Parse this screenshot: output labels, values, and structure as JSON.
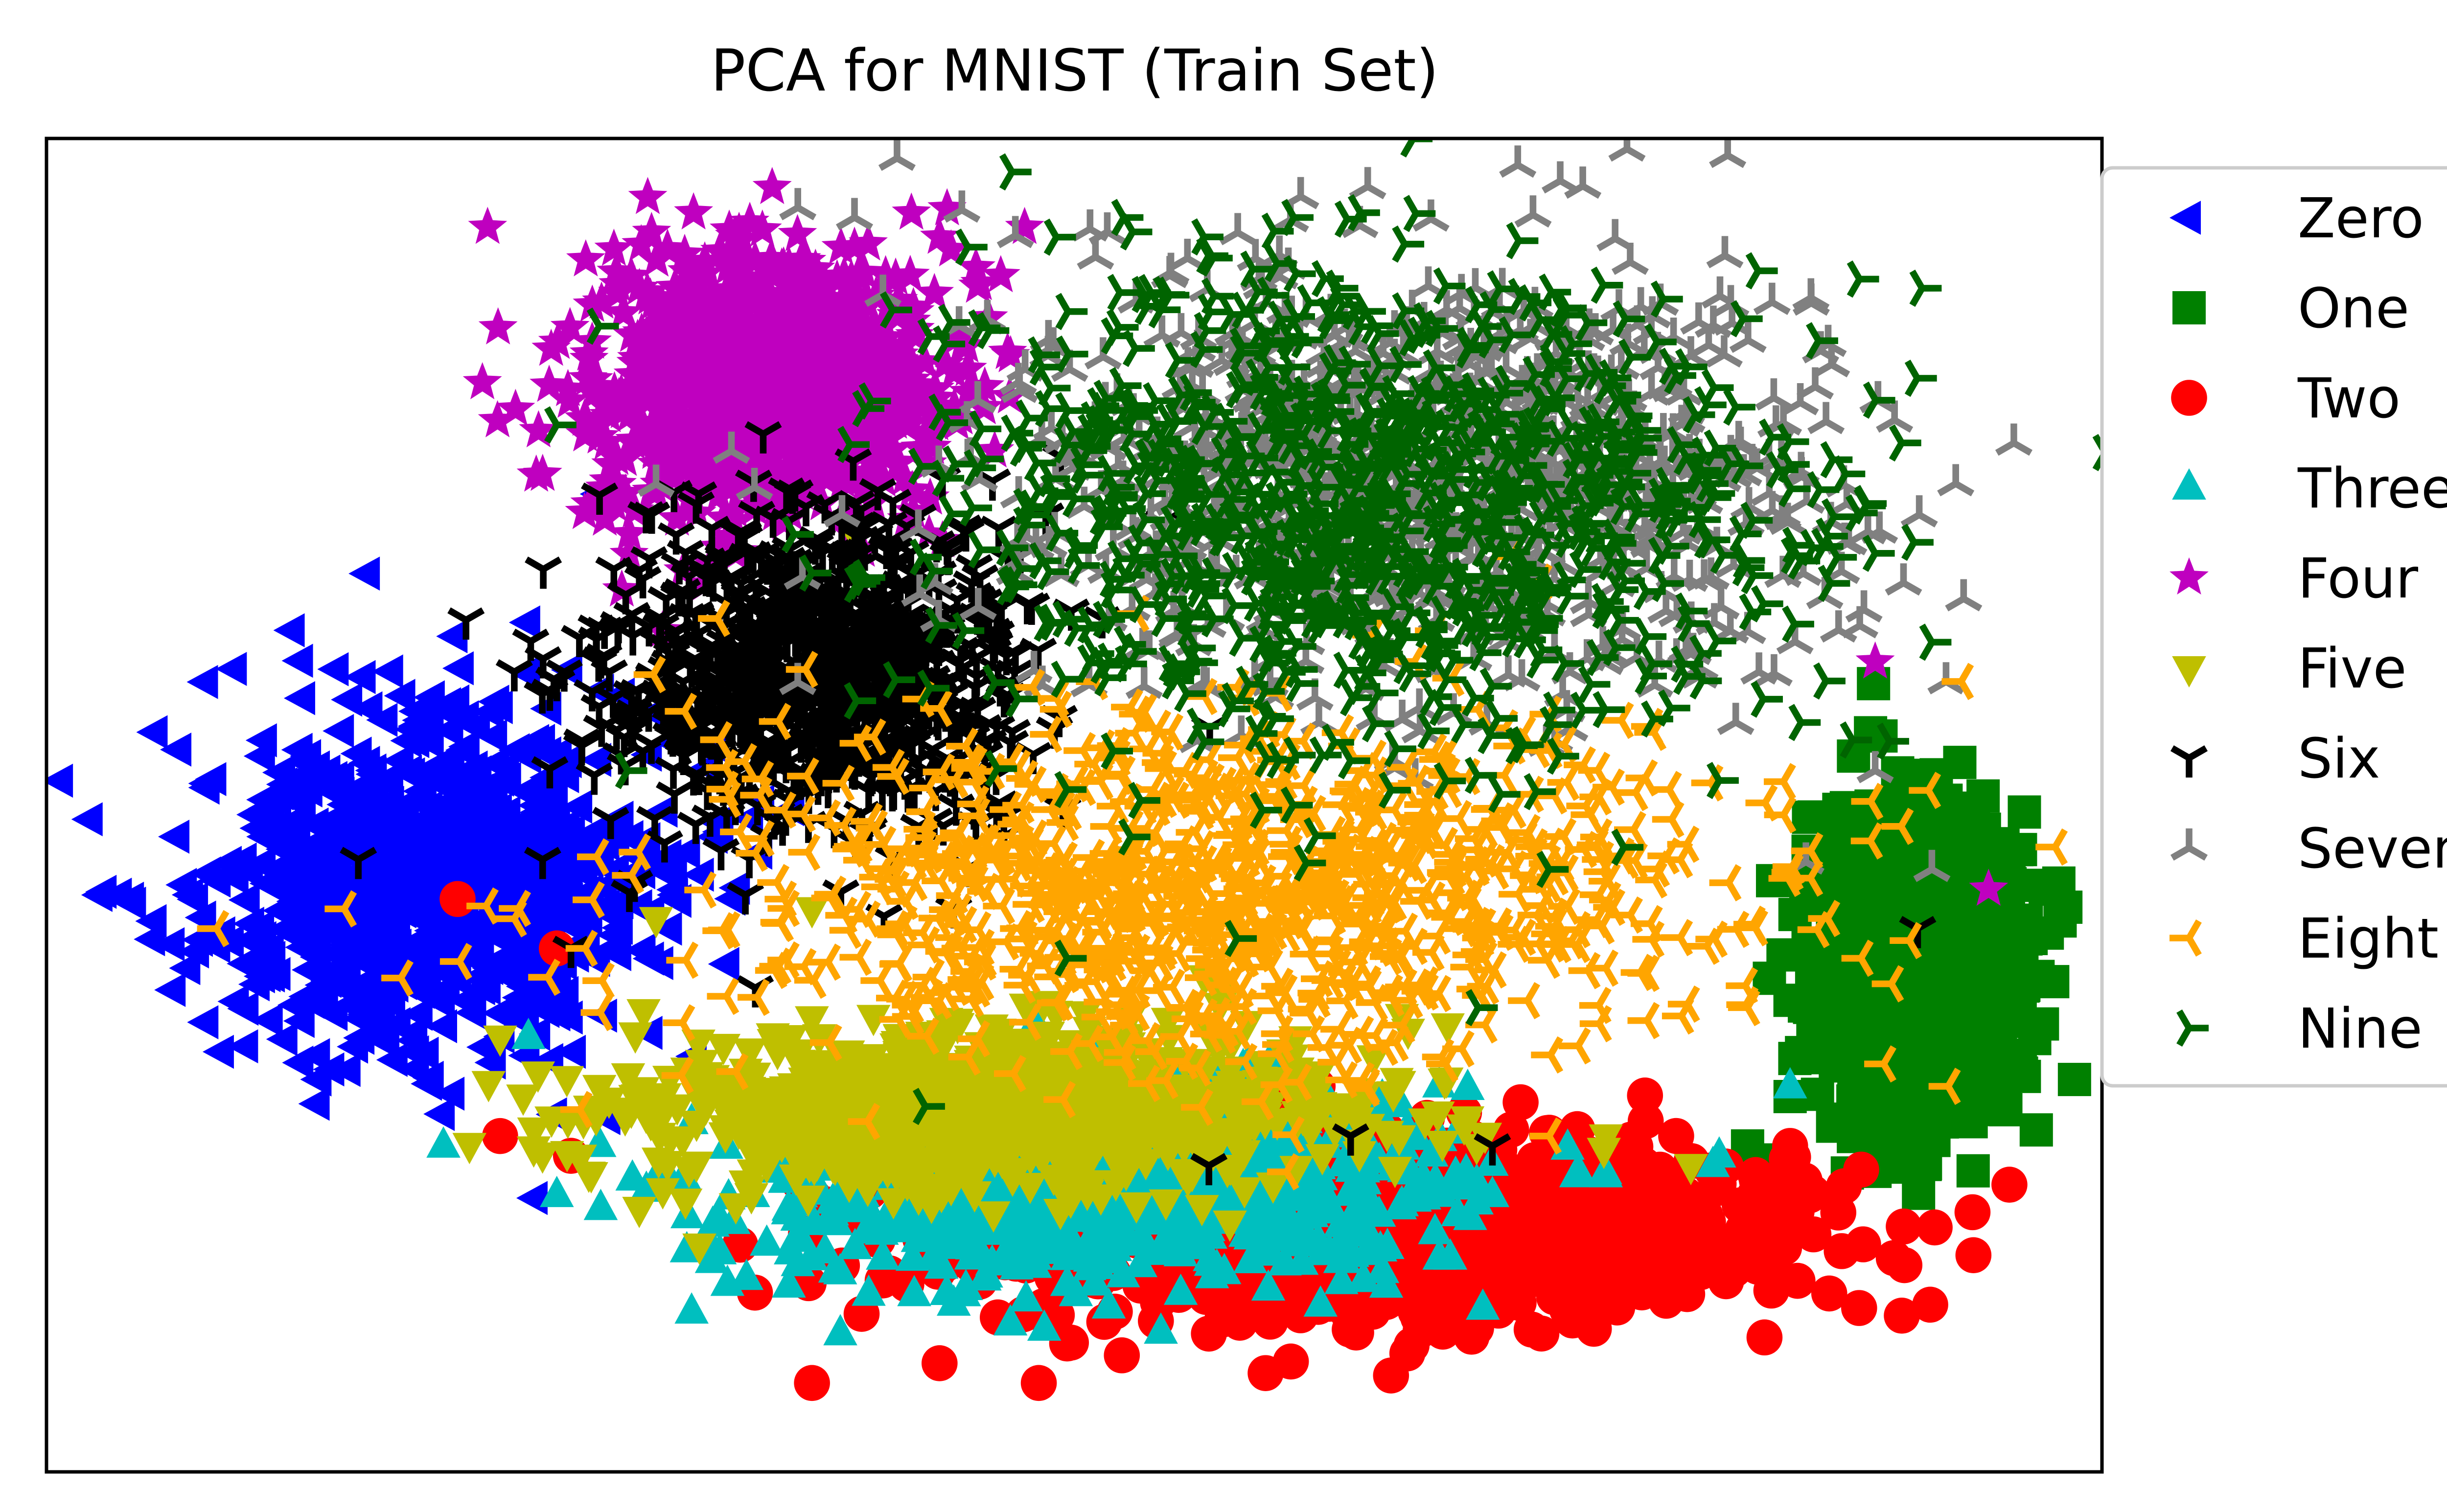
{
  "chart_data": {
    "type": "scatter",
    "title": "PCA for MNIST (Train Set)",
    "xlabel": "",
    "ylabel": "",
    "xlim": [
      -6.0,
      8.5
    ],
    "ylim": [
      -6.5,
      7.0
    ],
    "ticks_visible": false,
    "grid": false,
    "legend_position": "outside-right",
    "series": [
      {
        "name": "Zero",
        "marker": "triangle-left",
        "color": "#0000ff",
        "centroid": [
          -3.3,
          -0.6
        ],
        "spread": [
          1.0,
          1.1
        ],
        "points": [
          [
            -4.3,
            -0.2
          ],
          [
            -4.1,
            -0.4
          ],
          [
            -3.9,
            -0.7
          ],
          [
            -4.6,
            -0.3
          ],
          [
            -3.6,
            0.5
          ],
          [
            -3.1,
            1.3
          ],
          [
            -2.6,
            2.1
          ],
          [
            -2.1,
            3.4
          ],
          [
            -2.8,
            0.2
          ],
          [
            -3.3,
            -1.6
          ],
          [
            -2.9,
            -2.2
          ],
          [
            -2.3,
            -1.9
          ],
          [
            -3.8,
            -1.6
          ],
          [
            -1.3,
            4.6
          ],
          [
            -1.6,
            -1.0
          ],
          [
            -2.1,
            -0.3
          ]
        ]
      },
      {
        "name": "One",
        "marker": "square",
        "color": "#008000",
        "centroid": [
          7.2,
          -1.4
        ],
        "spread": [
          0.45,
          1.0
        ],
        "points": [
          [
            7.6,
            -0.9
          ],
          [
            7.8,
            -1.4
          ],
          [
            7.9,
            -0.2
          ],
          [
            7.5,
            -2.1
          ],
          [
            7.2,
            -2.6
          ],
          [
            6.6,
            -3.0
          ],
          [
            6.0,
            -3.2
          ],
          [
            8.1,
            -0.6
          ],
          [
            7.0,
            -1.8
          ],
          [
            6.3,
            -2.7
          ],
          [
            7.4,
            0.3
          ],
          [
            8.0,
            -1.1
          ]
        ]
      },
      {
        "name": "Two",
        "marker": "circle",
        "color": "#ff0000",
        "centroid": [
          3.3,
          -4.0
        ],
        "spread": [
          2.0,
          0.6
        ],
        "points": [
          [
            -0.6,
            -5.6
          ],
          [
            0.3,
            -5.4
          ],
          [
            1.2,
            -5.2
          ],
          [
            2.2,
            -5.1
          ],
          [
            3.2,
            -4.9
          ],
          [
            4.3,
            -4.6
          ],
          [
            5.1,
            -4.2
          ],
          [
            5.7,
            -3.9
          ],
          [
            6.3,
            -3.2
          ],
          [
            1.0,
            -5.6
          ],
          [
            2.6,
            -5.5
          ],
          [
            3.6,
            -5.3
          ],
          [
            -2.8,
            -3.1
          ],
          [
            -2.3,
            -3.3
          ],
          [
            -3.1,
            -0.7
          ],
          [
            -2.4,
            -1.2
          ],
          [
            0.7,
            -2.5
          ],
          [
            1.8,
            -3.8
          ]
        ]
      },
      {
        "name": "Three",
        "marker": "triangle-up",
        "color": "#00bfbf",
        "centroid": [
          1.5,
          -3.6
        ],
        "spread": [
          1.6,
          0.6
        ],
        "points": [
          [
            -2.4,
            -3.7
          ],
          [
            -3.2,
            -3.2
          ],
          [
            -2.6,
            -2.1
          ],
          [
            -1.3,
            -4.0
          ],
          [
            -0.7,
            -4.4
          ],
          [
            -0.2,
            -4.7
          ],
          [
            0.4,
            -4.8
          ],
          [
            1.2,
            -4.6
          ],
          [
            2.0,
            -4.3
          ],
          [
            2.6,
            -4.1
          ],
          [
            3.4,
            -3.9
          ],
          [
            4.2,
            -3.7
          ],
          [
            5.0,
            -3.5
          ],
          [
            5.8,
            -3.3
          ],
          [
            6.3,
            -2.6
          ],
          [
            -0.4,
            -5.1
          ],
          [
            0.8,
            -5.0
          ]
        ]
      },
      {
        "name": "Four",
        "marker": "star",
        "color": "#bf00bf",
        "centroid": [
          -0.9,
          4.5
        ],
        "spread": [
          0.8,
          0.9
        ],
        "points": [
          [
            -2.2,
            4.0
          ],
          [
            -1.8,
            4.5
          ],
          [
            -1.5,
            5.3
          ],
          [
            -0.8,
            5.7
          ],
          [
            -0.3,
            5.9
          ],
          [
            0.3,
            6.0
          ],
          [
            0.9,
            6.1
          ],
          [
            -1.1,
            4.3
          ],
          [
            -0.6,
            4.7
          ],
          [
            -2.5,
            3.6
          ],
          [
            6.9,
            1.7
          ],
          [
            7.7,
            -0.6
          ]
        ]
      },
      {
        "name": "Five",
        "marker": "triangle-down",
        "color": "#bfbf00",
        "centroid": [
          0.6,
          -2.8
        ],
        "spread": [
          1.6,
          0.5
        ],
        "points": [
          [
            -2.8,
            -2.1
          ],
          [
            -2.1,
            -2.6
          ],
          [
            -1.3,
            -2.5
          ],
          [
            -0.9,
            -3.1
          ],
          [
            -0.3,
            -3.4
          ],
          [
            0.4,
            -3.3
          ],
          [
            1.2,
            -3.2
          ],
          [
            2.0,
            -3.0
          ],
          [
            3.0,
            -3.3
          ],
          [
            4.0,
            -3.0
          ],
          [
            5.0,
            -3.1
          ],
          [
            5.6,
            -3.4
          ],
          [
            -1.7,
            -0.9
          ],
          [
            -0.6,
            -0.8
          ],
          [
            -0.3,
            3.0
          ]
        ]
      },
      {
        "name": "Six",
        "marker": "tri-down",
        "color": "#000000",
        "centroid": [
          -0.6,
          1.6
        ],
        "spread": [
          0.9,
          1.0
        ],
        "points": [
          [
            -2.7,
            1.6
          ],
          [
            -2.5,
            -0.3
          ],
          [
            -1.4,
            3.4
          ],
          [
            -1.2,
            2.5
          ],
          [
            -0.9,
            1.7
          ],
          [
            -0.5,
            1.1
          ],
          [
            -0.2,
            0.4
          ],
          [
            0.4,
            -0.8
          ],
          [
            -0.8,
            0.8
          ],
          [
            -2.3,
            -1.2
          ],
          [
            -1.0,
            -1.6
          ],
          [
            -3.8,
            -0.3
          ],
          [
            2.2,
            -3.4
          ],
          [
            4.2,
            -3.2
          ],
          [
            3.2,
            -3.1
          ],
          [
            7.2,
            -1.0
          ]
        ]
      },
      {
        "name": "Seven",
        "marker": "tri-up",
        "color": "#808080",
        "centroid": [
          3.8,
          3.6
        ],
        "spread": [
          1.8,
          1.4
        ],
        "points": [
          [
            0.0,
            6.8
          ],
          [
            -0.7,
            6.3
          ],
          [
            -0.3,
            6.2
          ],
          [
            1.4,
            5.8
          ],
          [
            2.7,
            5.6
          ],
          [
            4.5,
            5.3
          ],
          [
            5.6,
            4.8
          ],
          [
            6.2,
            4.1
          ],
          [
            6.7,
            3.3
          ],
          [
            7.1,
            2.5
          ],
          [
            7.4,
            1.5
          ],
          [
            6.9,
            0.6
          ],
          [
            7.3,
            -0.4
          ],
          [
            -1.7,
            3.5
          ]
        ]
      },
      {
        "name": "Eight",
        "marker": "tri-left",
        "color": "#ffa500",
        "centroid": [
          2.4,
          -0.6
        ],
        "spread": [
          2.2,
          1.1
        ],
        "points": [
          [
            -4.8,
            -1.0
          ],
          [
            -3.9,
            -0.8
          ],
          [
            -3.5,
            -1.5
          ],
          [
            -2.7,
            -0.9
          ],
          [
            -2.2,
            -1.2
          ],
          [
            -1.5,
            1.2
          ],
          [
            -0.8,
            0.2
          ],
          [
            0.0,
            -0.6
          ],
          [
            1.0,
            -0.3
          ],
          [
            2.0,
            -0.9
          ],
          [
            3.0,
            -0.5
          ],
          [
            4.0,
            -1.0
          ],
          [
            5.0,
            -1.4
          ],
          [
            6.0,
            -1.8
          ],
          [
            6.8,
            -1.3
          ],
          [
            1.4,
            1.5
          ],
          [
            3.3,
            0.6
          ],
          [
            0.5,
            -2.3
          ],
          [
            4.6,
            -3.1
          ]
        ]
      },
      {
        "name": "Nine",
        "marker": "tri-right",
        "color": "#006400",
        "centroid": [
          3.4,
          3.3
        ],
        "spread": [
          1.9,
          1.5
        ],
        "points": [
          [
            -2.1,
            5.1
          ],
          [
            -2.4,
            4.1
          ],
          [
            -1.9,
            0.6
          ],
          [
            -0.6,
            2.6
          ],
          [
            0.5,
            5.9
          ],
          [
            1.6,
            6.2
          ],
          [
            2.8,
            6.2
          ],
          [
            4.4,
            5.4
          ],
          [
            5.5,
            4.6
          ],
          [
            6.3,
            3.7
          ],
          [
            6.9,
            2.8
          ],
          [
            7.3,
            1.9
          ],
          [
            5.8,
            0.5
          ],
          [
            4.6,
            -0.4
          ],
          [
            3.2,
            0.7
          ],
          [
            2.0,
            1.6
          ],
          [
            2.4,
            -1.1
          ],
          [
            4.1,
            -1.8
          ],
          [
            1.2,
            -1.3
          ],
          [
            0.2,
            -2.8
          ]
        ]
      }
    ]
  }
}
